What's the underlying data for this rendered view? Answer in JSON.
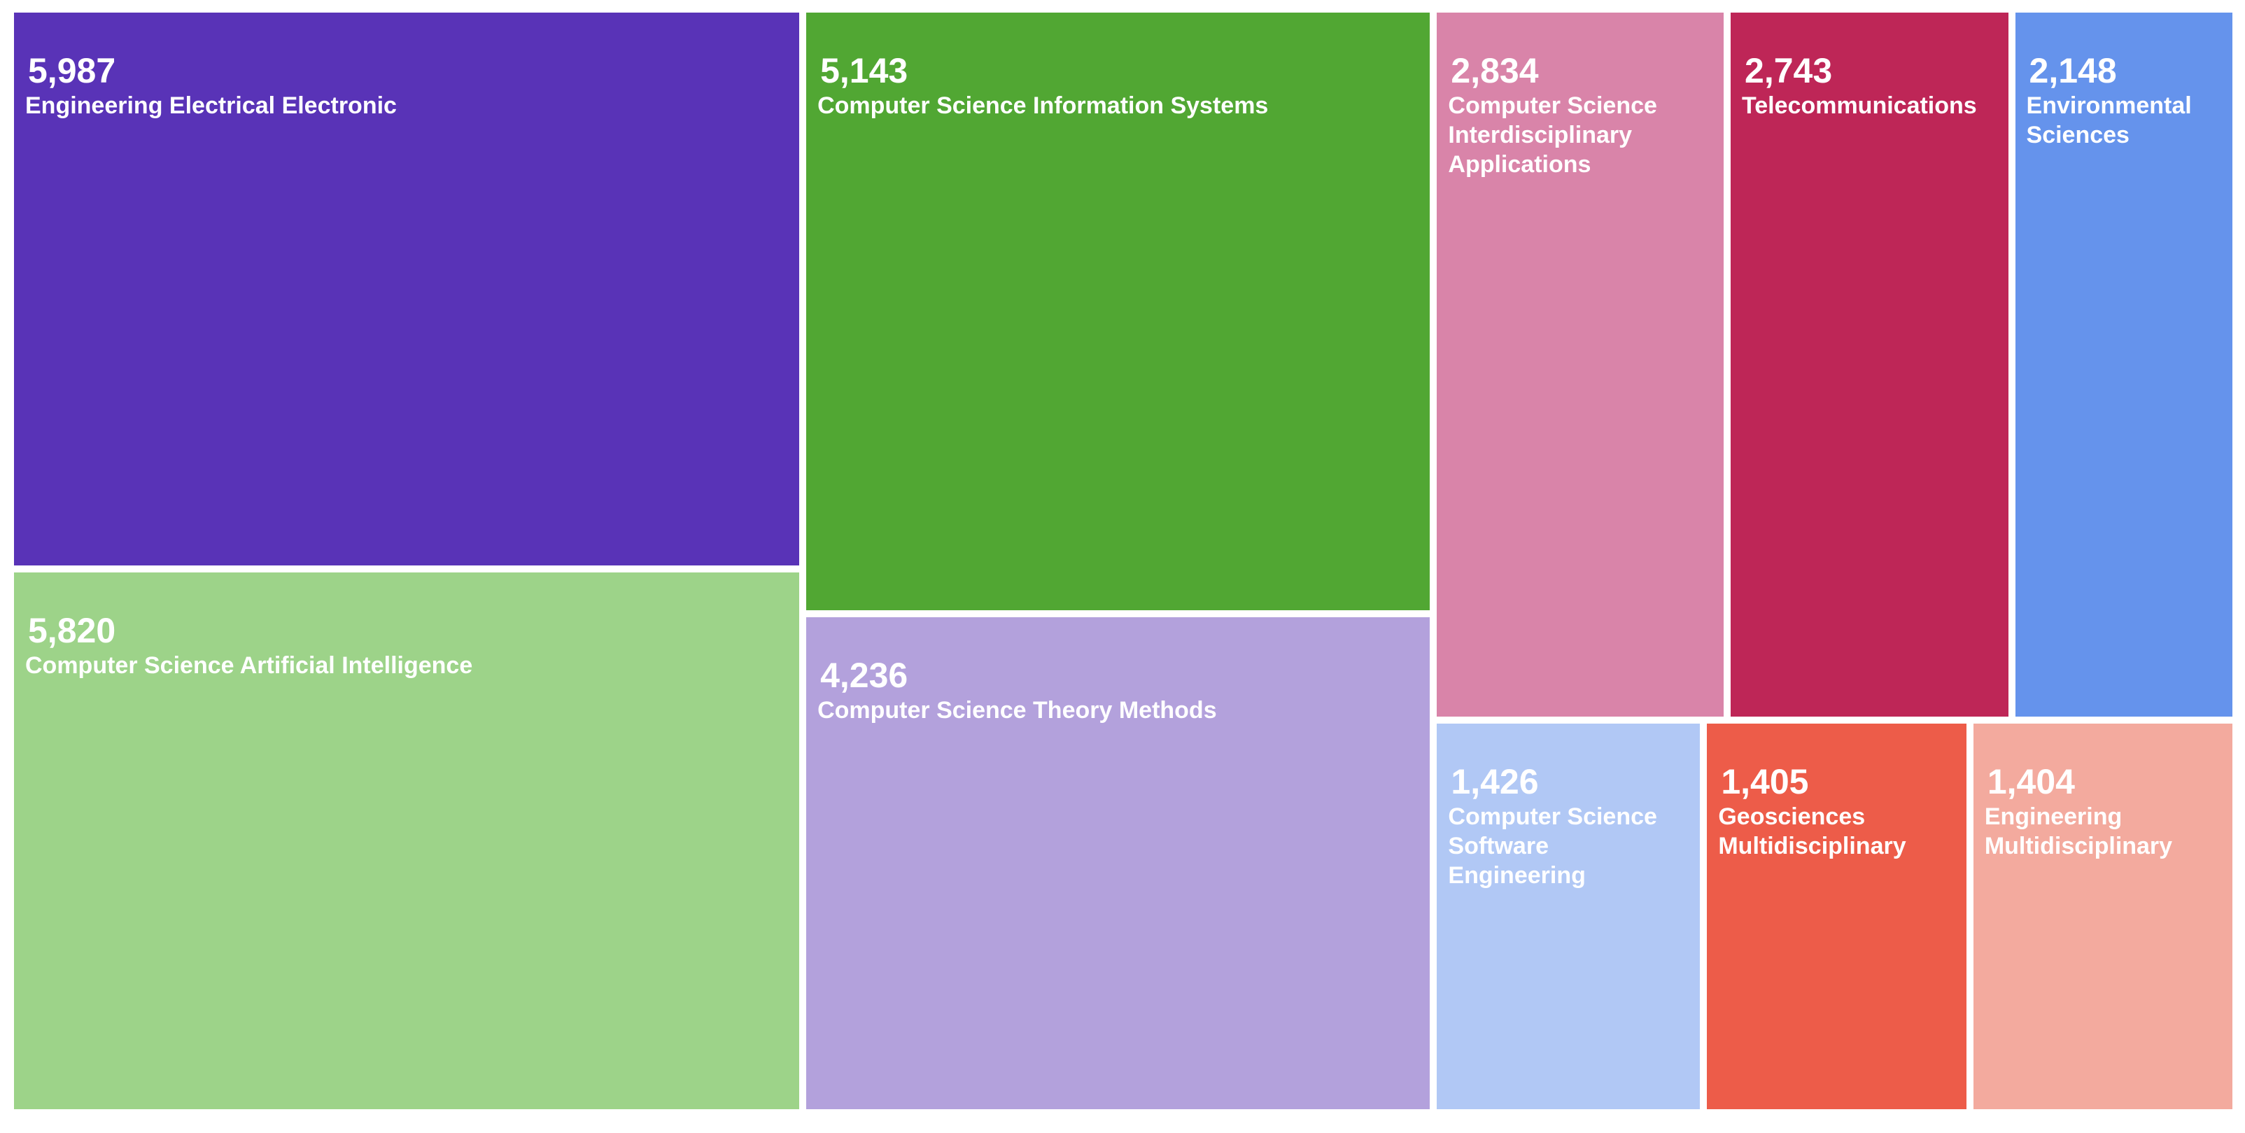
{
  "chart_data": {
    "type": "treemap",
    "title": "",
    "items": [
      {
        "label": "Engineering Electrical Electronic",
        "value": 5987,
        "display": "5,987",
        "color": "#5933b7"
      },
      {
        "label": "Computer Science Artificial Intelligence",
        "value": 5820,
        "display": "5,820",
        "color": "#9dd389"
      },
      {
        "label": "Computer Science Information Systems",
        "value": 5143,
        "display": "5,143",
        "color": "#51a733"
      },
      {
        "label": "Computer Science Theory Methods",
        "value": 4236,
        "display": "4,236",
        "color": "#b3a1dc"
      },
      {
        "label": "Computer Science Interdisciplinary Applications",
        "value": 2834,
        "display": "2,834",
        "color": "#d984a9"
      },
      {
        "label": "Telecommunications",
        "value": 2743,
        "display": "2,743",
        "color": "#be2657"
      },
      {
        "label": "Environmental Sciences",
        "value": 2148,
        "display": "2,148",
        "color": "#6593ec"
      },
      {
        "label": "Computer Science Software Engineering",
        "value": 1426,
        "display": "1,426",
        "color": "#b1c8f5"
      },
      {
        "label": "Geosciences Multidisciplinary",
        "value": 1405,
        "display": "1,405",
        "color": "#ed5c49"
      },
      {
        "label": "Engineering Multidisciplinary",
        "value": 1404,
        "display": "1,404",
        "color": "#f3aa9e"
      }
    ]
  }
}
